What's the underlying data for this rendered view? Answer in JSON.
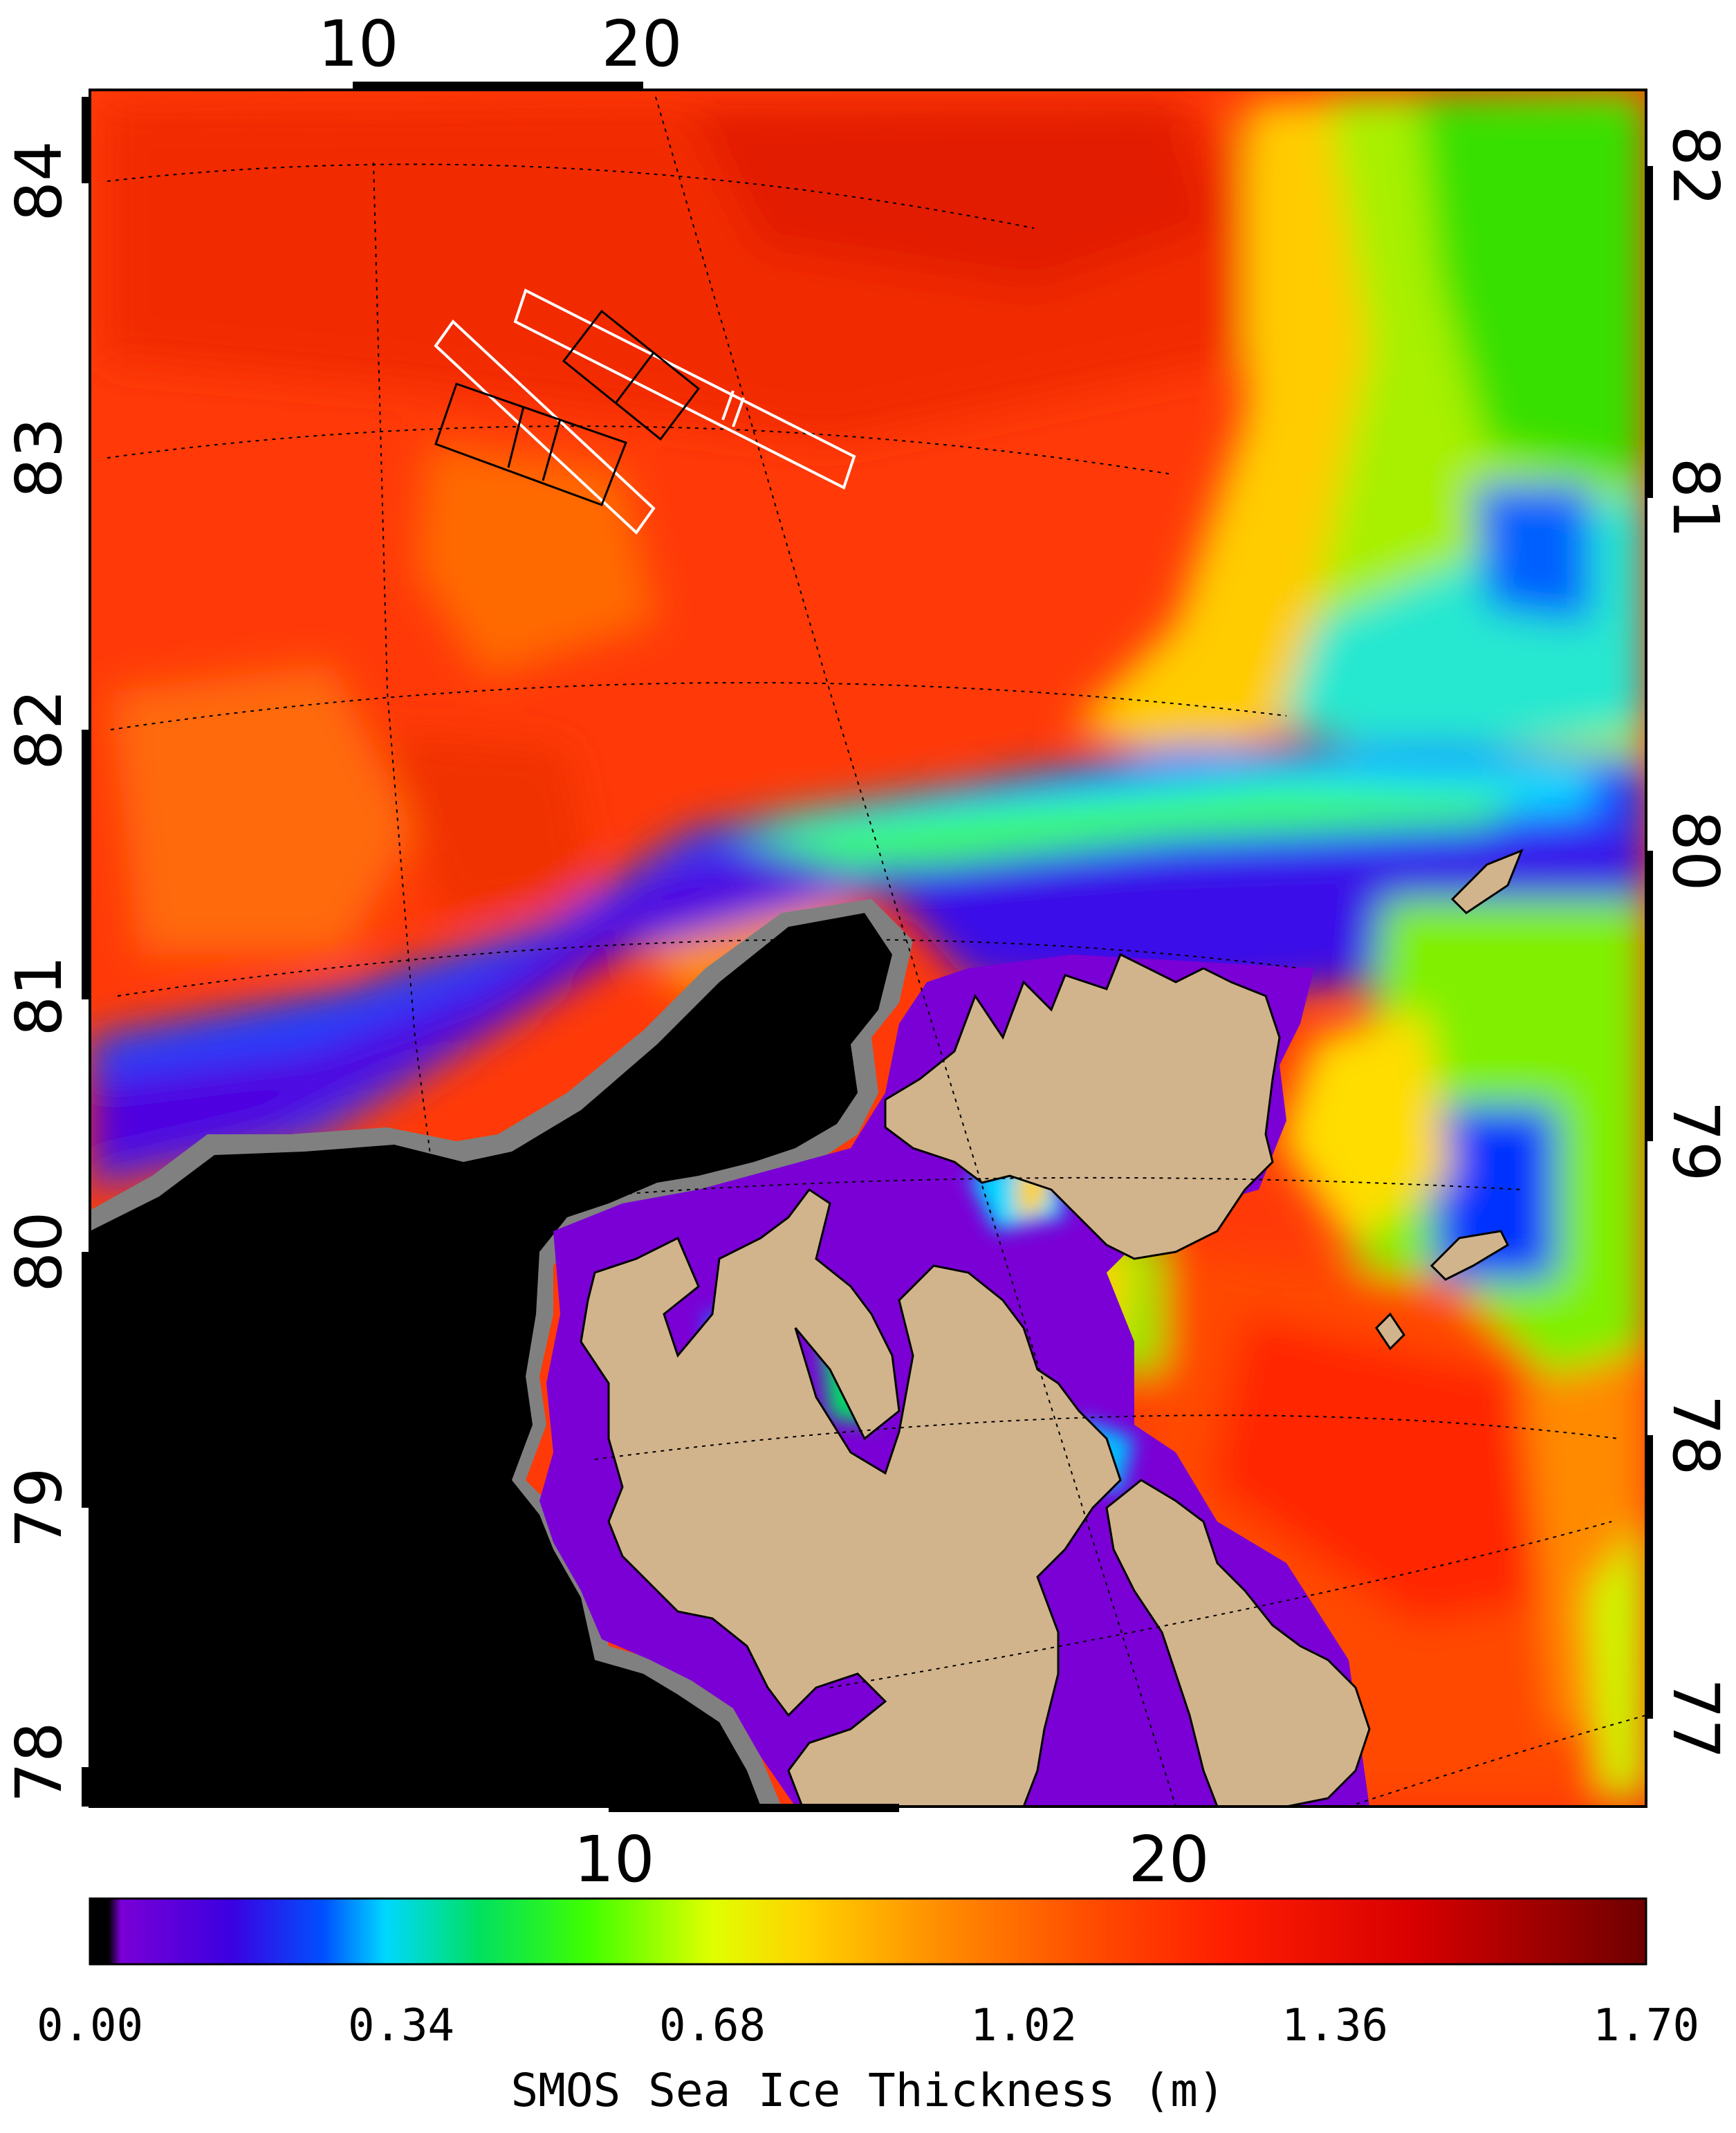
{
  "map": {
    "top_lon_ticks": [
      "10",
      "20"
    ],
    "bottom_lon_ticks": [
      "10",
      "20"
    ],
    "left_lat_ticks": [
      "84",
      "83",
      "82",
      "81",
      "80",
      "79",
      "78"
    ],
    "right_lat_ticks": [
      "82",
      "81",
      "80",
      "79",
      "78",
      "77"
    ],
    "colors": {
      "ocean_no_data": "#000000",
      "land": "#d2b48c",
      "coast_gray": "#808080",
      "white_flight_boxes": "#ffffff",
      "black_flight_boxes": "#000000"
    }
  },
  "colorbar": {
    "ticks": [
      "0.00",
      "0.34",
      "0.68",
      "1.02",
      "1.36",
      "1.70"
    ],
    "label": "SMOS Sea Ice Thickness (m)",
    "range": [
      0.0,
      1.7
    ],
    "stops": [
      "#000000",
      "#7a00d6",
      "#3c00e0",
      "#0050ff",
      "#00d8ff",
      "#00e060",
      "#20ff00",
      "#c8ff00",
      "#ffe000",
      "#ff9800",
      "#ff5a00",
      "#ff2800",
      "#e00000",
      "#7a0000"
    ]
  }
}
